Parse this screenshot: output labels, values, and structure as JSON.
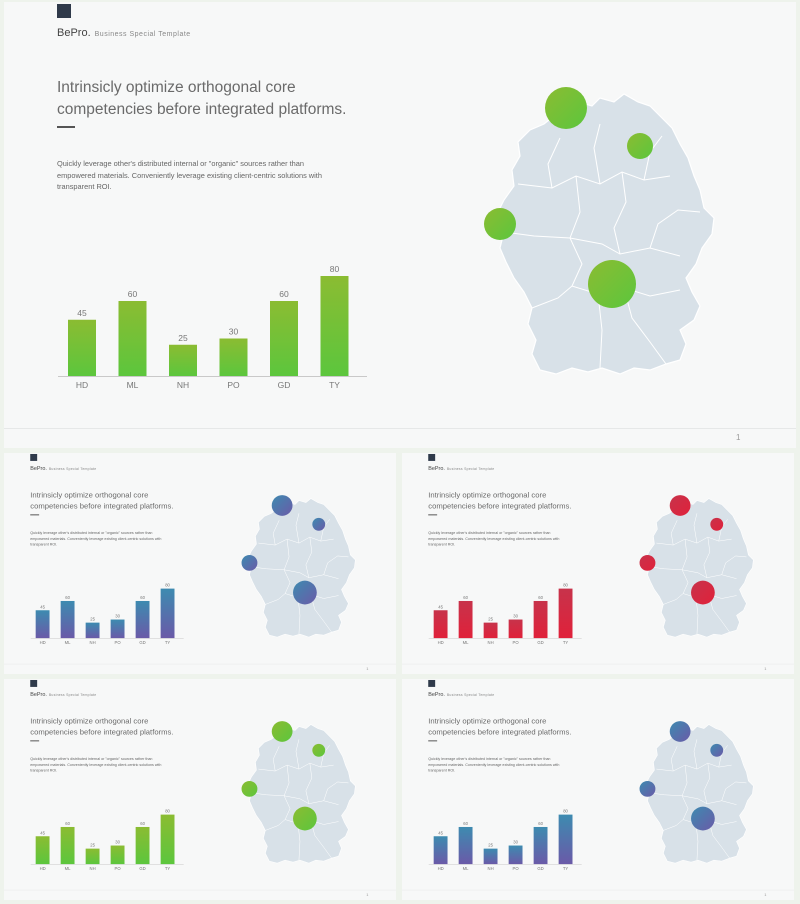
{
  "brand": {
    "name": "BePro.",
    "subtitle": "Business Special Template"
  },
  "headline": "Intrinsicly optimize orthogonal core competencies before integrated platforms.",
  "body_text": "Quickly leverage other's distributed internal or \"organic\" sources rather than empowered materials. Conveniently leverage existing client-centric solutions with transparent ROI.",
  "page_number": "1",
  "chart_data": [
    {
      "type": "bar",
      "categories": [
        "HD",
        "ML",
        "NH",
        "PO",
        "GD",
        "TY"
      ],
      "values": [
        45,
        60,
        25,
        30,
        60,
        80
      ],
      "variant": "green"
    },
    {
      "type": "bar",
      "categories": [
        "HD",
        "ML",
        "NH",
        "PO",
        "GD",
        "TY"
      ],
      "values": [
        45,
        60,
        25,
        30,
        60,
        80
      ],
      "variant": "blue"
    },
    {
      "type": "bar",
      "categories": [
        "HD",
        "ML",
        "NH",
        "PO",
        "GD",
        "TY"
      ],
      "values": [
        45,
        60,
        25,
        30,
        60,
        80
      ],
      "variant": "red"
    },
    {
      "type": "bar",
      "categories": [
        "HD",
        "ML",
        "NH",
        "PO",
        "GD",
        "TY"
      ],
      "values": [
        45,
        60,
        25,
        30,
        60,
        80
      ],
      "variant": "green"
    },
    {
      "type": "bar",
      "categories": [
        "HD",
        "ML",
        "NH",
        "PO",
        "GD",
        "TY"
      ],
      "values": [
        45,
        60,
        25,
        30,
        60,
        80
      ],
      "variant": "blue"
    }
  ],
  "map": {
    "name": "Germany",
    "markers": 4
  },
  "colors": {
    "green_top": "#8bbc32",
    "green_bottom": "#5cc63d",
    "blue_top": "#3d8bb0",
    "blue_bottom": "#6a5aa8",
    "red_top": "#c7334b",
    "red_bottom": "#e0213a",
    "map_fill": "#d8e1e8",
    "map_stroke": "#ffffff"
  }
}
